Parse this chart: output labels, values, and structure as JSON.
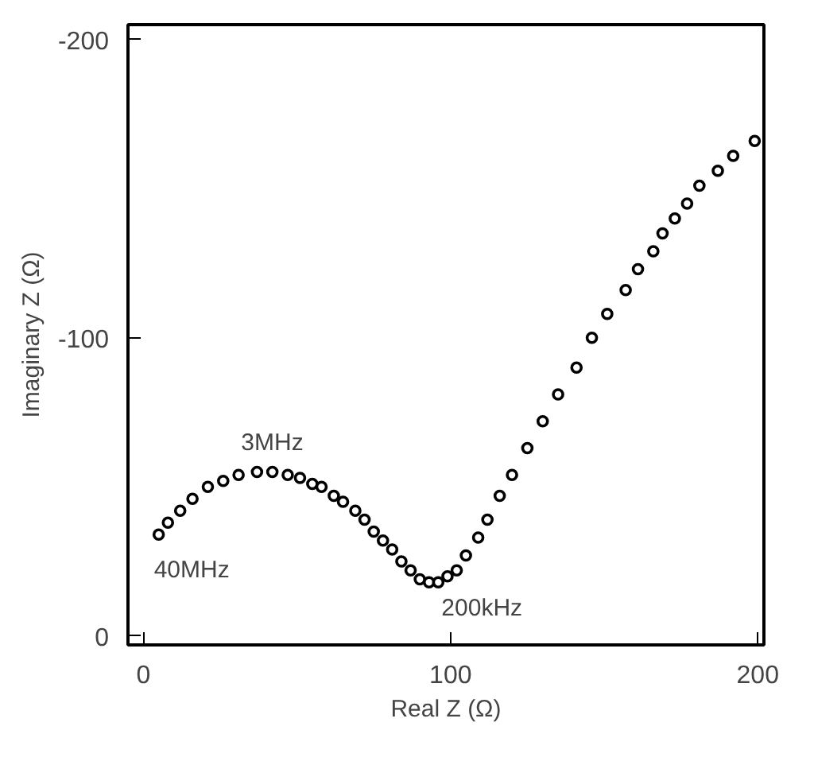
{
  "chart_data": {
    "type": "scatter",
    "xlabel": "Real Z (Ω)",
    "ylabel": "Imaginary Z (Ω)",
    "xlim": [
      -5,
      202
    ],
    "ylim": [
      3,
      -205
    ],
    "xticks": [
      0,
      100,
      200
    ],
    "yticks": [
      0,
      -100,
      -200
    ],
    "grid": false,
    "marker": "circle",
    "series": [
      {
        "color": "#000000",
        "x": [
          5,
          8,
          12,
          16,
          21,
          26,
          31,
          37,
          42,
          47,
          51,
          55,
          58,
          62,
          65,
          69,
          72,
          75,
          78,
          81,
          84,
          87,
          90,
          93,
          96,
          99,
          102,
          105,
          109,
          112,
          116,
          120,
          125,
          130,
          135,
          141,
          146,
          151,
          157,
          161,
          166,
          169,
          173,
          177,
          181,
          187,
          192,
          199
        ],
        "values": [
          -34,
          -38,
          -42,
          -46,
          -50,
          -52,
          -54,
          -55,
          -55,
          -54,
          -53,
          -51,
          -50,
          -47,
          -45,
          -42,
          -39,
          -35,
          -32,
          -29,
          -25,
          -22,
          -19,
          -18,
          -18,
          -20,
          -22,
          -27,
          -33,
          -39,
          -47,
          -54,
          -63,
          -72,
          -81,
          -90,
          -100,
          -108,
          -116,
          -123,
          -129,
          -135,
          -140,
          -145,
          -151,
          -156,
          -161,
          -166
        ]
      }
    ],
    "annotations": [
      {
        "text": "3MHz",
        "x": 37,
        "y": -55
      },
      {
        "text": "40MHz",
        "x": 5,
        "y": -34
      },
      {
        "text": "200kHz",
        "x": 96,
        "y": -18
      }
    ]
  }
}
